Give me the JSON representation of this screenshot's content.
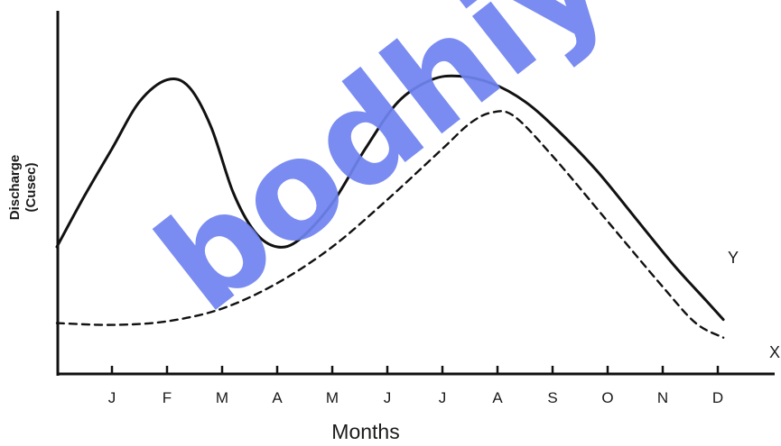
{
  "chart_data": {
    "type": "line",
    "categories": [
      "J",
      "F",
      "M",
      "A",
      "M",
      "J",
      "J",
      "A",
      "S",
      "O",
      "N",
      "D"
    ],
    "xlabel": "Months",
    "ylabel_line1": "Discharge",
    "ylabel_line2": "(Cusec)",
    "ylim": [
      0,
      100
    ],
    "grid": false,
    "series": [
      {
        "name": "Y",
        "style": "solid",
        "color": "#111111",
        "points": [
          {
            "x": 0.0,
            "y": 35
          },
          {
            "x": 0.5,
            "y": 49
          },
          {
            "x": 1.0,
            "y": 62
          },
          {
            "x": 1.5,
            "y": 75
          },
          {
            "x": 2.0,
            "y": 81
          },
          {
            "x": 2.4,
            "y": 79
          },
          {
            "x": 2.8,
            "y": 68
          },
          {
            "x": 3.2,
            "y": 50
          },
          {
            "x": 3.6,
            "y": 39
          },
          {
            "x": 4.0,
            "y": 35
          },
          {
            "x": 4.4,
            "y": 37
          },
          {
            "x": 5.0,
            "y": 47
          },
          {
            "x": 5.6,
            "y": 62
          },
          {
            "x": 6.2,
            "y": 75
          },
          {
            "x": 6.8,
            "y": 81
          },
          {
            "x": 7.3,
            "y": 82
          },
          {
            "x": 7.9,
            "y": 80
          },
          {
            "x": 8.5,
            "y": 75
          },
          {
            "x": 9.1,
            "y": 67
          },
          {
            "x": 9.8,
            "y": 56
          },
          {
            "x": 10.5,
            "y": 43
          },
          {
            "x": 11.2,
            "y": 30
          },
          {
            "x": 11.8,
            "y": 20
          },
          {
            "x": 12.1,
            "y": 15
          }
        ]
      },
      {
        "name": "X",
        "style": "dashed",
        "color": "#111111",
        "points": [
          {
            "x": 0.0,
            "y": 14
          },
          {
            "x": 1.0,
            "y": 13.5
          },
          {
            "x": 2.0,
            "y": 14.5
          },
          {
            "x": 3.0,
            "y": 18
          },
          {
            "x": 4.0,
            "y": 25
          },
          {
            "x": 5.0,
            "y": 35
          },
          {
            "x": 6.0,
            "y": 48
          },
          {
            "x": 7.0,
            "y": 62
          },
          {
            "x": 7.5,
            "y": 69
          },
          {
            "x": 7.9,
            "y": 72
          },
          {
            "x": 8.3,
            "y": 71
          },
          {
            "x": 9.0,
            "y": 60
          },
          {
            "x": 10.0,
            "y": 42
          },
          {
            "x": 11.0,
            "y": 24
          },
          {
            "x": 11.6,
            "y": 14
          },
          {
            "x": 12.1,
            "y": 10
          }
        ]
      }
    ]
  },
  "watermark_text": "bodhiy"
}
